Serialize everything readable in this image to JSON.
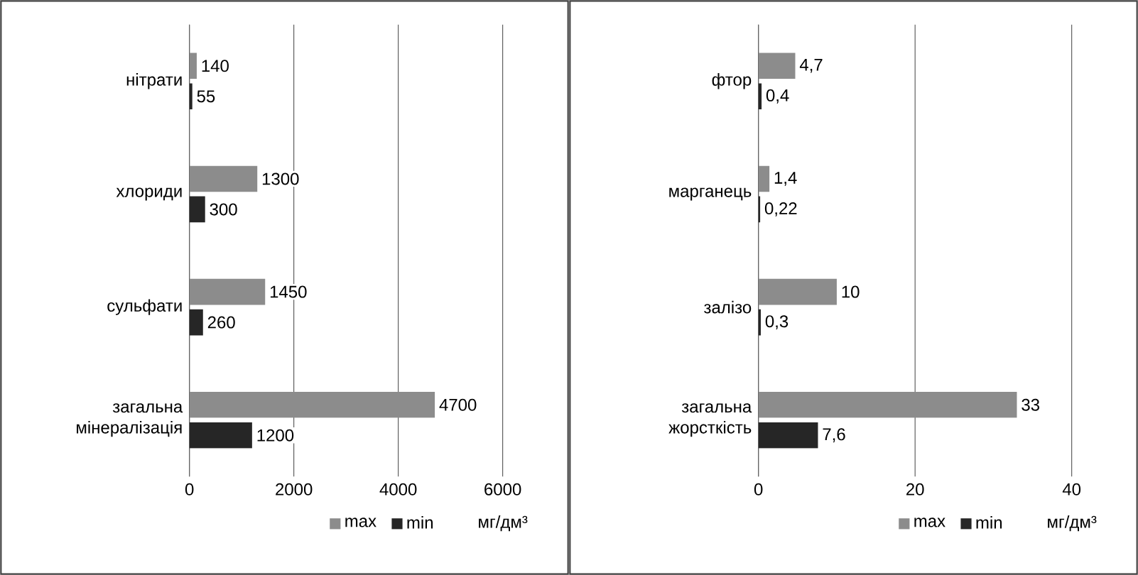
{
  "chart_data": [
    {
      "type": "bar",
      "orientation": "horizontal",
      "categories": [
        "нітрати",
        "хлориди",
        "сульфати",
        "загальна мінералізація"
      ],
      "series": [
        {
          "name": "max",
          "color": "#8c8c8c",
          "values": [
            140,
            1300,
            1450,
            4700
          ],
          "value_labels": [
            "140",
            "1300",
            "1450",
            "4700"
          ]
        },
        {
          "name": "min",
          "color": "#262626",
          "values": [
            55,
            300,
            260,
            1200
          ],
          "value_labels": [
            "55",
            "300",
            "260",
            "1200"
          ]
        }
      ],
      "xlim": [
        0,
        6000
      ],
      "xticks": [
        0,
        2000,
        4000,
        6000
      ],
      "xlabel": "мг/дм³",
      "grid": "x",
      "legend": "bottom"
    },
    {
      "type": "bar",
      "orientation": "horizontal",
      "categories": [
        "фтор",
        "марганець",
        "залізо",
        "загальна жорсткість"
      ],
      "series": [
        {
          "name": "max",
          "color": "#8c8c8c",
          "values": [
            4.7,
            1.4,
            10,
            33
          ],
          "value_labels": [
            "4,7",
            "1,4",
            "10",
            "33"
          ]
        },
        {
          "name": "min",
          "color": "#262626",
          "values": [
            0.4,
            0.22,
            0.3,
            7.6
          ],
          "value_labels": [
            "0,4",
            "0,22",
            "0,3",
            "7,6"
          ]
        }
      ],
      "xlim": [
        0,
        40
      ],
      "xticks": [
        0,
        20,
        40
      ],
      "xlabel": "мг/дм³",
      "grid": "x",
      "legend": "bottom"
    }
  ]
}
